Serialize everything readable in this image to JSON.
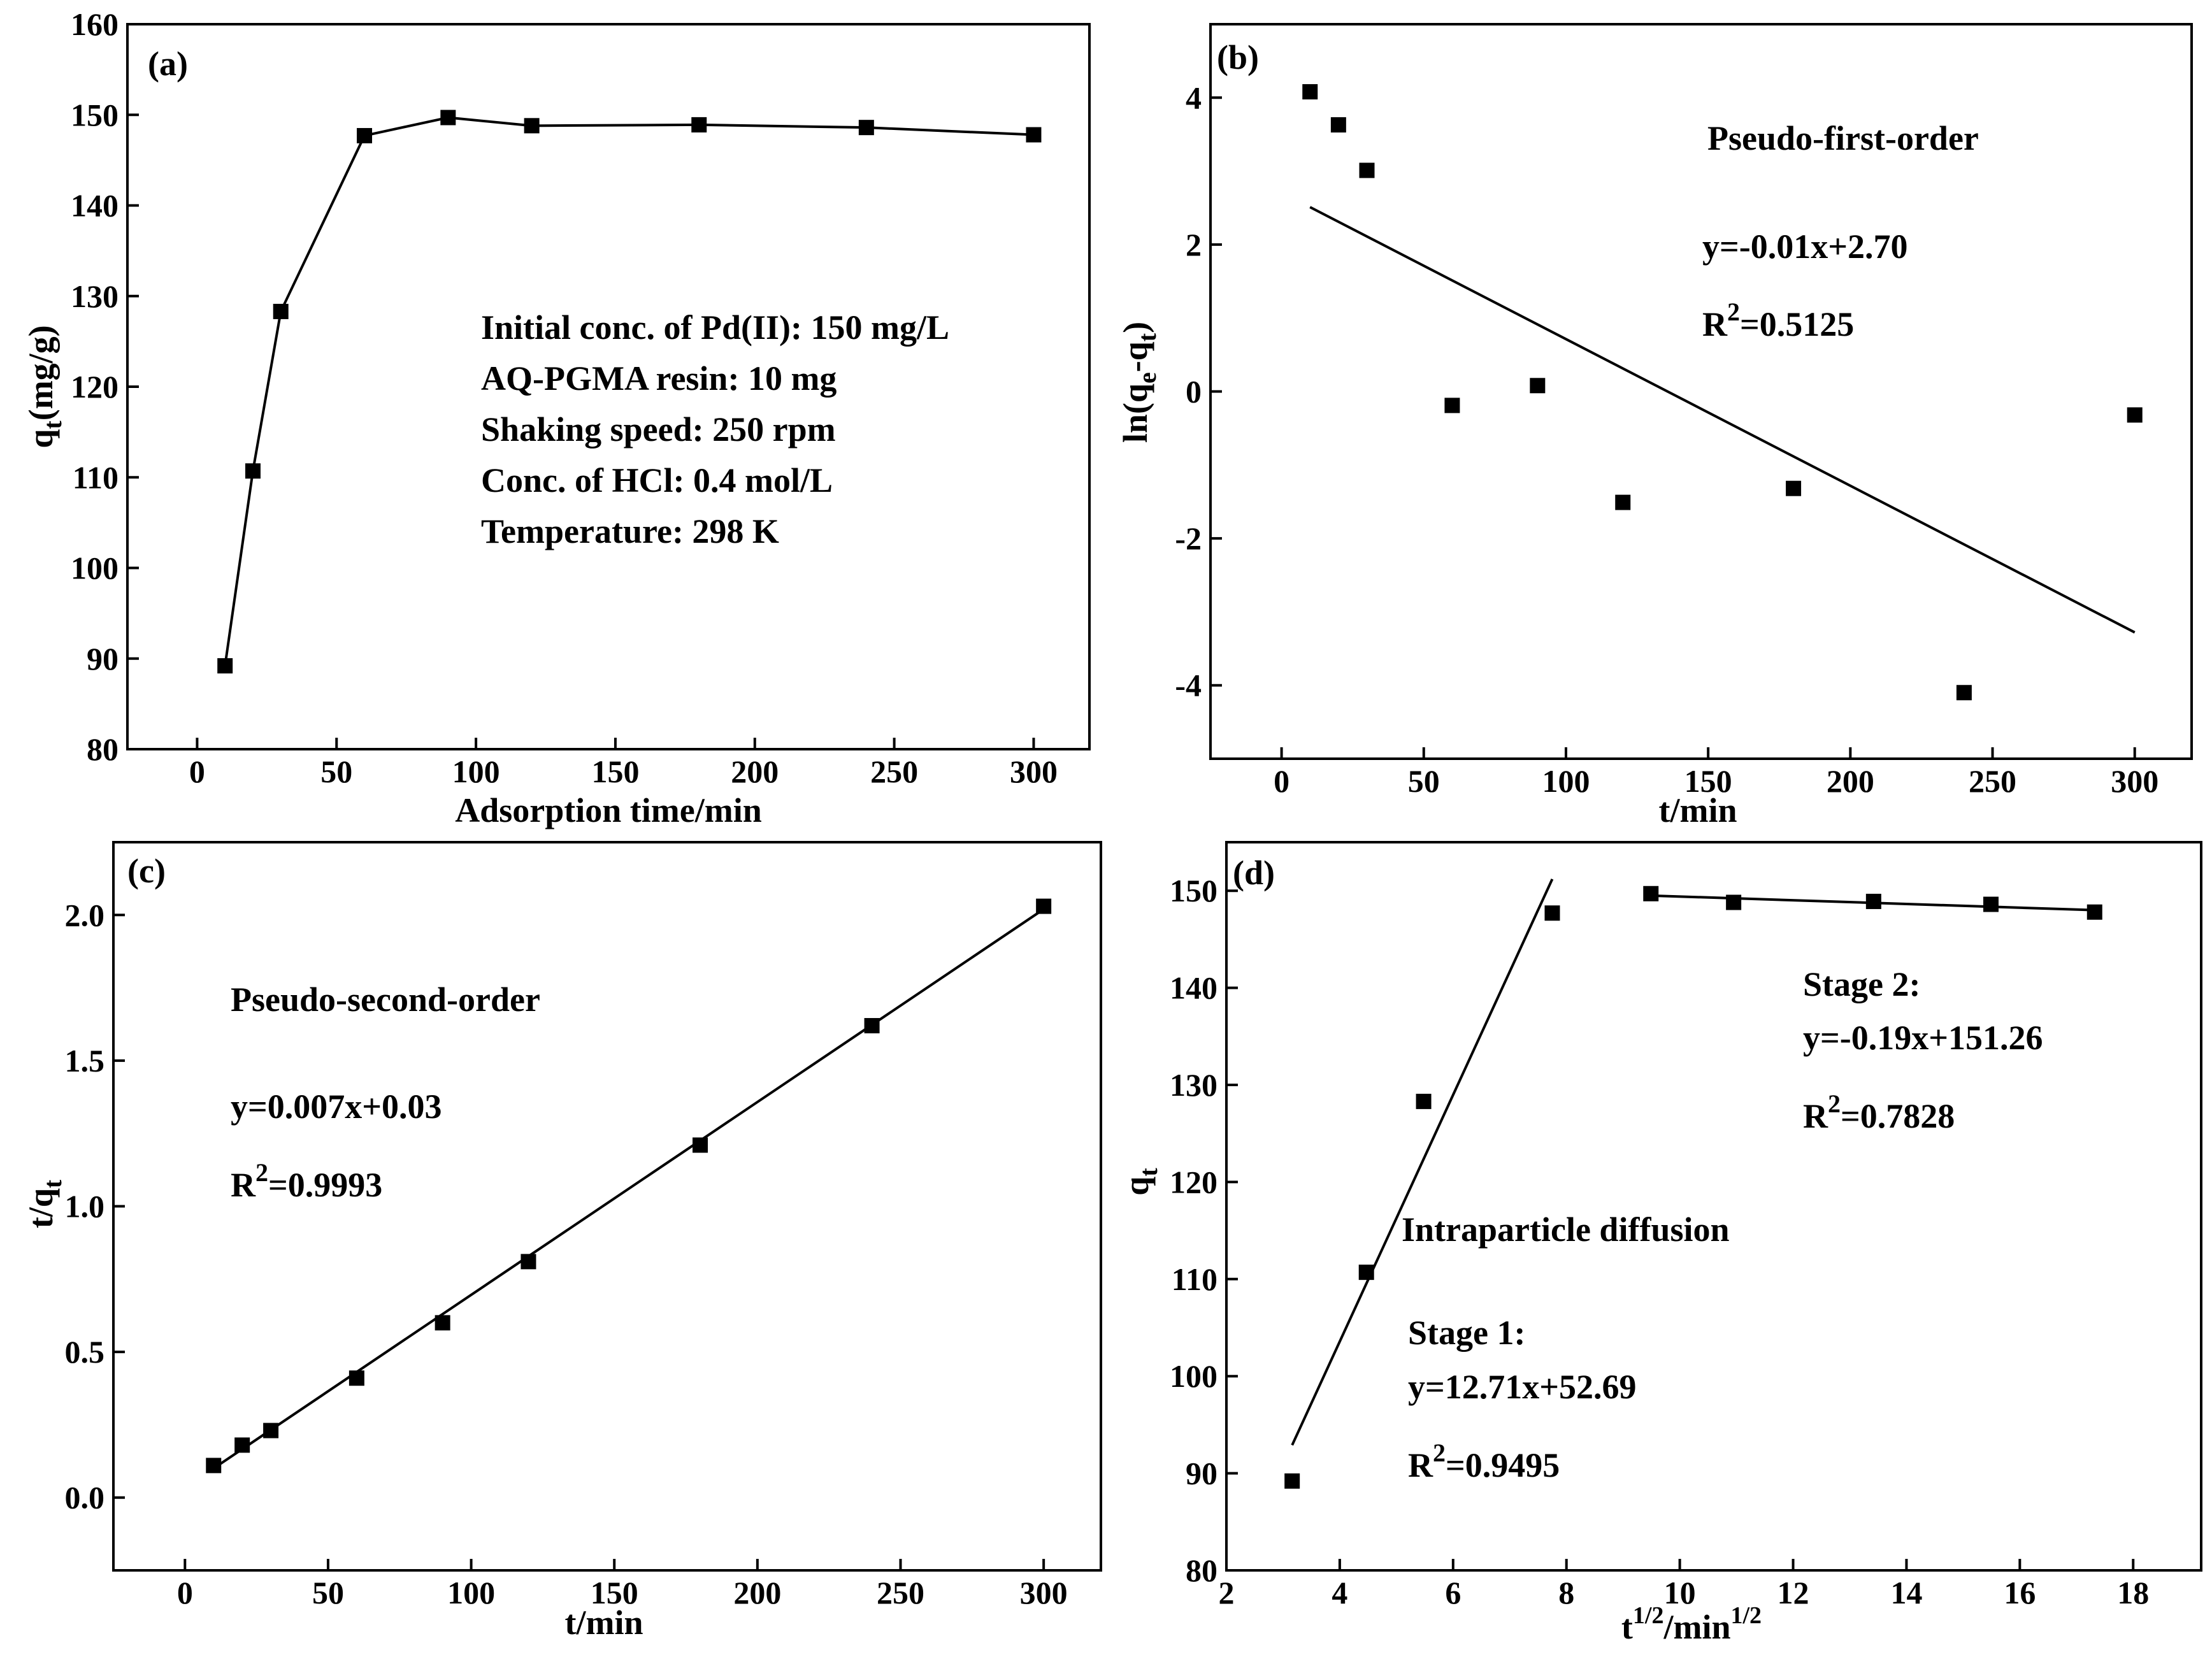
{
  "chart_data": [
    {
      "id": "a",
      "type": "line",
      "panel_label": "(a)",
      "xlabel": "Adsorption time/min",
      "ylabel": {
        "base": "q",
        "sub": "t",
        "rest": "(mg/g)"
      },
      "xlim": [
        -25,
        320
      ],
      "ylim": [
        80,
        160
      ],
      "xticks": [
        0,
        50,
        100,
        150,
        200,
        250,
        300
      ],
      "yticks": [
        80,
        90,
        100,
        110,
        120,
        130,
        140,
        150,
        160
      ],
      "series": [
        {
          "name": "q_t",
          "marker": "square",
          "connect": true,
          "x": [
            10,
            20,
            30,
            60,
            90,
            120,
            180,
            240,
            300
          ],
          "y": [
            89.2,
            110.7,
            128.3,
            147.7,
            149.7,
            148.8,
            148.9,
            148.6,
            147.8
          ]
        }
      ],
      "annotations": [
        "Initial conc. of Pd(II): 150 mg/L",
        "AQ-PGMA resin: 10 mg",
        "Shaking speed: 250 rpm",
        "Conc. of HCl: 0.4 mol/L",
        "Temperature: 298 K"
      ]
    },
    {
      "id": "b",
      "type": "scatter",
      "panel_label": "(b)",
      "xlabel": "t/min",
      "ylabel": {
        "base": "ln(q",
        "sub": "e",
        "mid": "-q",
        "sub2": "t",
        "rest": ")"
      },
      "xlim": [
        -25,
        320
      ],
      "ylim": [
        -5,
        5
      ],
      "xticks": [
        0,
        50,
        100,
        150,
        200,
        250,
        300
      ],
      "yticks": [
        -4,
        -2,
        0,
        2,
        4
      ],
      "series": [
        {
          "name": "ln(qe-qt)",
          "marker": "square",
          "x": [
            10,
            20,
            30,
            60,
            90,
            120,
            180,
            240,
            300
          ],
          "y": [
            4.08,
            3.63,
            3.01,
            -0.19,
            0.08,
            -1.51,
            -1.32,
            -4.1,
            -0.32
          ]
        }
      ],
      "fit_lines": [
        {
          "x": [
            10,
            300
          ],
          "y": [
            2.51,
            -3.28
          ]
        }
      ],
      "title_text": "Pseudo-first-order",
      "equation": "y=-0.01x+2.70",
      "r2": {
        "prefix": "R",
        "sup": "2",
        "value": "=0.5125"
      }
    },
    {
      "id": "c",
      "type": "scatter",
      "panel_label": "(c)",
      "xlabel": "t/min",
      "ylabel": {
        "base": "t/q",
        "sub": "t",
        "rest": ""
      },
      "xlim": [
        -25,
        320
      ],
      "ylim": [
        -0.25,
        2.25
      ],
      "xticks": [
        0,
        50,
        100,
        150,
        200,
        250,
        300
      ],
      "yticks": [
        0.0,
        0.5,
        1.0,
        1.5,
        2.0
      ],
      "ytick_labels": [
        "0.0",
        "0.5",
        "1.0",
        "1.5",
        "2.0"
      ],
      "series": [
        {
          "name": "t/qt",
          "marker": "square",
          "x": [
            10,
            20,
            30,
            60,
            90,
            120,
            180,
            240,
            300
          ],
          "y": [
            0.11,
            0.18,
            0.23,
            0.41,
            0.6,
            0.81,
            1.21,
            1.62,
            2.03
          ]
        }
      ],
      "fit_lines": [
        {
          "x": [
            10,
            300
          ],
          "y": [
            0.1,
            2.02
          ]
        }
      ],
      "title_text": "Pseudo-second-order",
      "equation": "y=0.007x+0.03",
      "r2": {
        "prefix": "R",
        "sup": "2",
        "value": "=0.9993"
      }
    },
    {
      "id": "d",
      "type": "scatter",
      "panel_label": "(d)",
      "xlabel": {
        "base": "t",
        "sup": "1/2",
        "mid": "/min",
        "sup2": "1/2"
      },
      "ylabel": {
        "base": "q",
        "sub": "t",
        "rest": ""
      },
      "xlim": [
        2,
        19.2
      ],
      "ylim": [
        80,
        155
      ],
      "xticks": [
        2,
        4,
        6,
        8,
        10,
        12,
        14,
        16,
        18
      ],
      "yticks": [
        80,
        90,
        100,
        110,
        120,
        130,
        140,
        150
      ],
      "series": [
        {
          "name": "q_t",
          "marker": "square",
          "x": [
            3.16,
            4.47,
            5.48,
            7.75,
            9.49,
            10.95,
            13.42,
            15.49,
            17.32
          ],
          "y": [
            89.2,
            110.7,
            128.3,
            147.7,
            149.7,
            148.8,
            148.9,
            148.6,
            147.8
          ]
        }
      ],
      "fit_lines": [
        {
          "x": [
            3.16,
            7.75
          ],
          "y": [
            92.9,
            151.2
          ]
        },
        {
          "x": [
            9.49,
            17.32
          ],
          "y": [
            149.5,
            148.0
          ]
        }
      ],
      "title_text": "Intraparticle diffusion",
      "stage1": {
        "label": "Stage 1:",
        "equation": "y=12.71x+52.69",
        "r2": {
          "prefix": "R",
          "sup": "2",
          "value": "=0.9495"
        }
      },
      "stage2": {
        "label": "Stage 2:",
        "equation": "y=-0.19x+151.26",
        "r2": {
          "prefix": "R",
          "sup": "2",
          "value": "=0.7828"
        }
      }
    }
  ]
}
